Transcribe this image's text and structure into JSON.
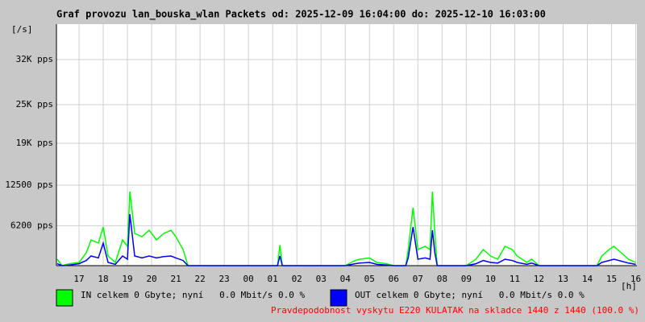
{
  "chart_data": {
    "type": "line",
    "title": "Graf provozu lan_bouska_wlan Packets od: 2025-12-09 16:04:00 do: 2025-12-10 16:03:00",
    "y_label": "[/s]",
    "x_label": "[h]",
    "annotation": "Pravdepodobnost vyskytu E220 KULATAK na skladce 1440 z 1440 (100.0 %)",
    "x": [
      16.1,
      16.3,
      16.6,
      17.0,
      17.3,
      17.5,
      17.8,
      18.0,
      18.2,
      18.5,
      18.8,
      19.0,
      19.1,
      19.3,
      19.6,
      19.9,
      20.2,
      20.5,
      20.8,
      21.0,
      21.3,
      21.5,
      22.0,
      25.2,
      25.3,
      25.4,
      28.0,
      28.4,
      28.6,
      29.0,
      29.3,
      29.7,
      30.0,
      30.5,
      30.6,
      30.8,
      31.0,
      31.3,
      31.5,
      31.6,
      31.7,
      31.8,
      33.0,
      33.4,
      33.7,
      34.0,
      34.3,
      34.6,
      34.9,
      35.1,
      35.5,
      35.7,
      36.0,
      38.4,
      38.6,
      38.9,
      39.1,
      39.4,
      39.7,
      40.0
    ],
    "series": [
      {
        "name": "IN celkem 0 Gbyte; nyní   0.0 Mbit/s 0.0 %",
        "color": "#00ff00",
        "values": [
          1000,
          0,
          300,
          500,
          2000,
          4000,
          3500,
          6000,
          1500,
          500,
          4000,
          3000,
          11500,
          5000,
          4500,
          5500,
          4000,
          5000,
          5500,
          4500,
          2500,
          0,
          0,
          0,
          3200,
          0,
          0,
          800,
          1000,
          1200,
          500,
          300,
          0,
          0,
          2500,
          9000,
          2500,
          3000,
          2500,
          11500,
          5000,
          0,
          0,
          1000,
          2500,
          1500,
          1000,
          3000,
          2500,
          1500,
          500,
          1000,
          0,
          0,
          1500,
          2500,
          3000,
          2000,
          1000,
          500
        ]
      },
      {
        "name": "OUT celkem 0 Gbyte; nyní   0.0 Mbit/s 0.0 %",
        "color": "#0000ff",
        "values": [
          300,
          0,
          100,
          300,
          800,
          1500,
          1200,
          3500,
          500,
          200,
          1500,
          1000,
          8000,
          1500,
          1200,
          1500,
          1200,
          1400,
          1500,
          1200,
          800,
          0,
          0,
          0,
          1500,
          0,
          0,
          300,
          400,
          500,
          200,
          100,
          0,
          0,
          1200,
          6000,
          1000,
          1200,
          1000,
          5500,
          2000,
          0,
          0,
          300,
          800,
          500,
          400,
          1000,
          800,
          500,
          200,
          400,
          0,
          0,
          500,
          800,
          1000,
          700,
          400,
          200
        ]
      }
    ],
    "xlim": [
      16.067,
      40.05
    ],
    "xticks": [
      {
        "value": 17,
        "label": "17"
      },
      {
        "value": 18,
        "label": "18"
      },
      {
        "value": 19,
        "label": "19"
      },
      {
        "value": 20,
        "label": "20"
      },
      {
        "value": 21,
        "label": "21"
      },
      {
        "value": 22,
        "label": "22"
      },
      {
        "value": 23,
        "label": "23"
      },
      {
        "value": 24,
        "label": "00"
      },
      {
        "value": 25,
        "label": "01"
      },
      {
        "value": 26,
        "label": "02"
      },
      {
        "value": 27,
        "label": "03"
      },
      {
        "value": 28,
        "label": "04"
      },
      {
        "value": 29,
        "label": "05"
      },
      {
        "value": 30,
        "label": "06"
      },
      {
        "value": 31,
        "label": "07"
      },
      {
        "value": 32,
        "label": "08"
      },
      {
        "value": 33,
        "label": "09"
      },
      {
        "value": 34,
        "label": "10"
      },
      {
        "value": 35,
        "label": "11"
      },
      {
        "value": 36,
        "label": "12"
      },
      {
        "value": 37,
        "label": "13"
      },
      {
        "value": 38,
        "label": "14"
      },
      {
        "value": 39,
        "label": "15"
      },
      {
        "value": 40,
        "label": "16"
      }
    ],
    "ylim": [
      0,
      37500
    ],
    "yticks": [
      {
        "value": 6200,
        "label": "6200 pps"
      },
      {
        "value": 12500,
        "label": "12500 pps"
      },
      {
        "value": 19000,
        "label": "19K pps"
      },
      {
        "value": 25000,
        "label": "25K pps"
      },
      {
        "value": 32000,
        "label": "32K pps"
      }
    ],
    "grid": true
  }
}
